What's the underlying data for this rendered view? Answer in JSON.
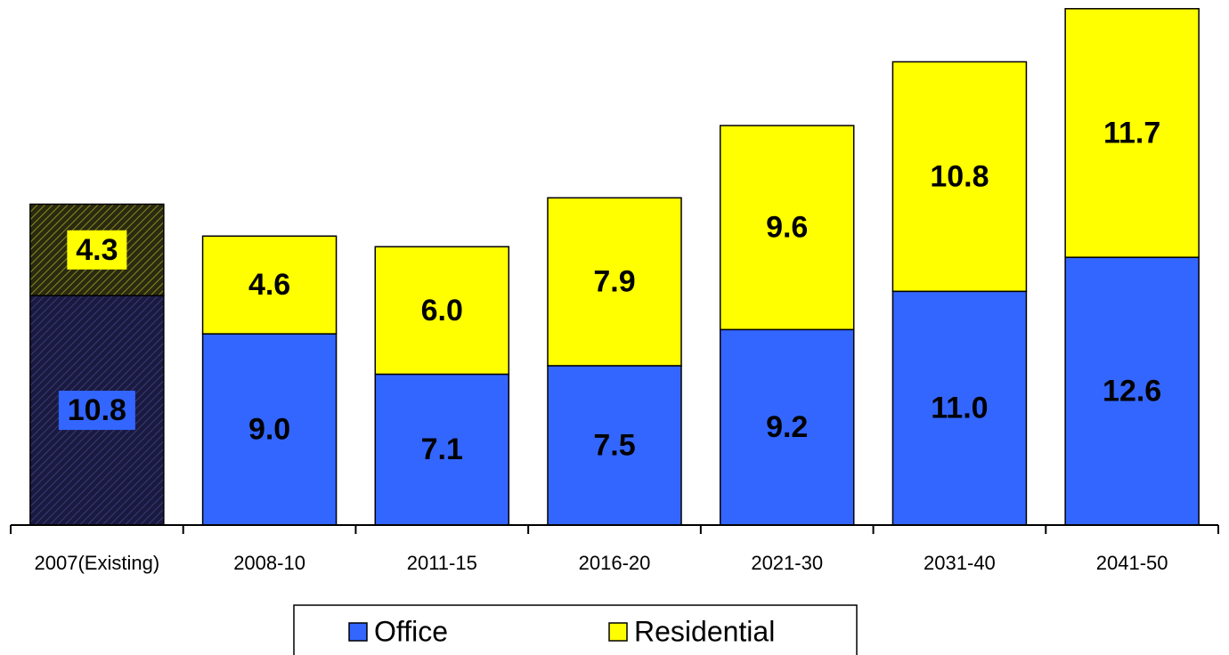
{
  "chart_data": {
    "type": "stacked_bar",
    "categories": [
      "2007(Existing)",
      "2008-10",
      "2011-15",
      "2016-20",
      "2021-30",
      "2031-40",
      "2041-50"
    ],
    "series": [
      {
        "name": "Office",
        "color": "#3366ff",
        "values": [
          10.8,
          9.0,
          7.1,
          7.5,
          9.2,
          11.0,
          12.6
        ],
        "value_labels": [
          "10.8",
          "9.0",
          "7.1",
          "7.5",
          "9.2",
          "11.0",
          "12.6"
        ]
      },
      {
        "name": "Residential",
        "color": "#ffff00",
        "values": [
          4.3,
          4.6,
          6.0,
          7.9,
          9.6,
          10.8,
          11.7
        ],
        "value_labels": [
          "4.3",
          "4.6",
          "6.0",
          "7.9",
          "9.6",
          "10.8",
          "11.7"
        ]
      }
    ],
    "hatched_index": 0,
    "ylim": [
      0,
      24.5
    ],
    "legend": "bottom"
  }
}
